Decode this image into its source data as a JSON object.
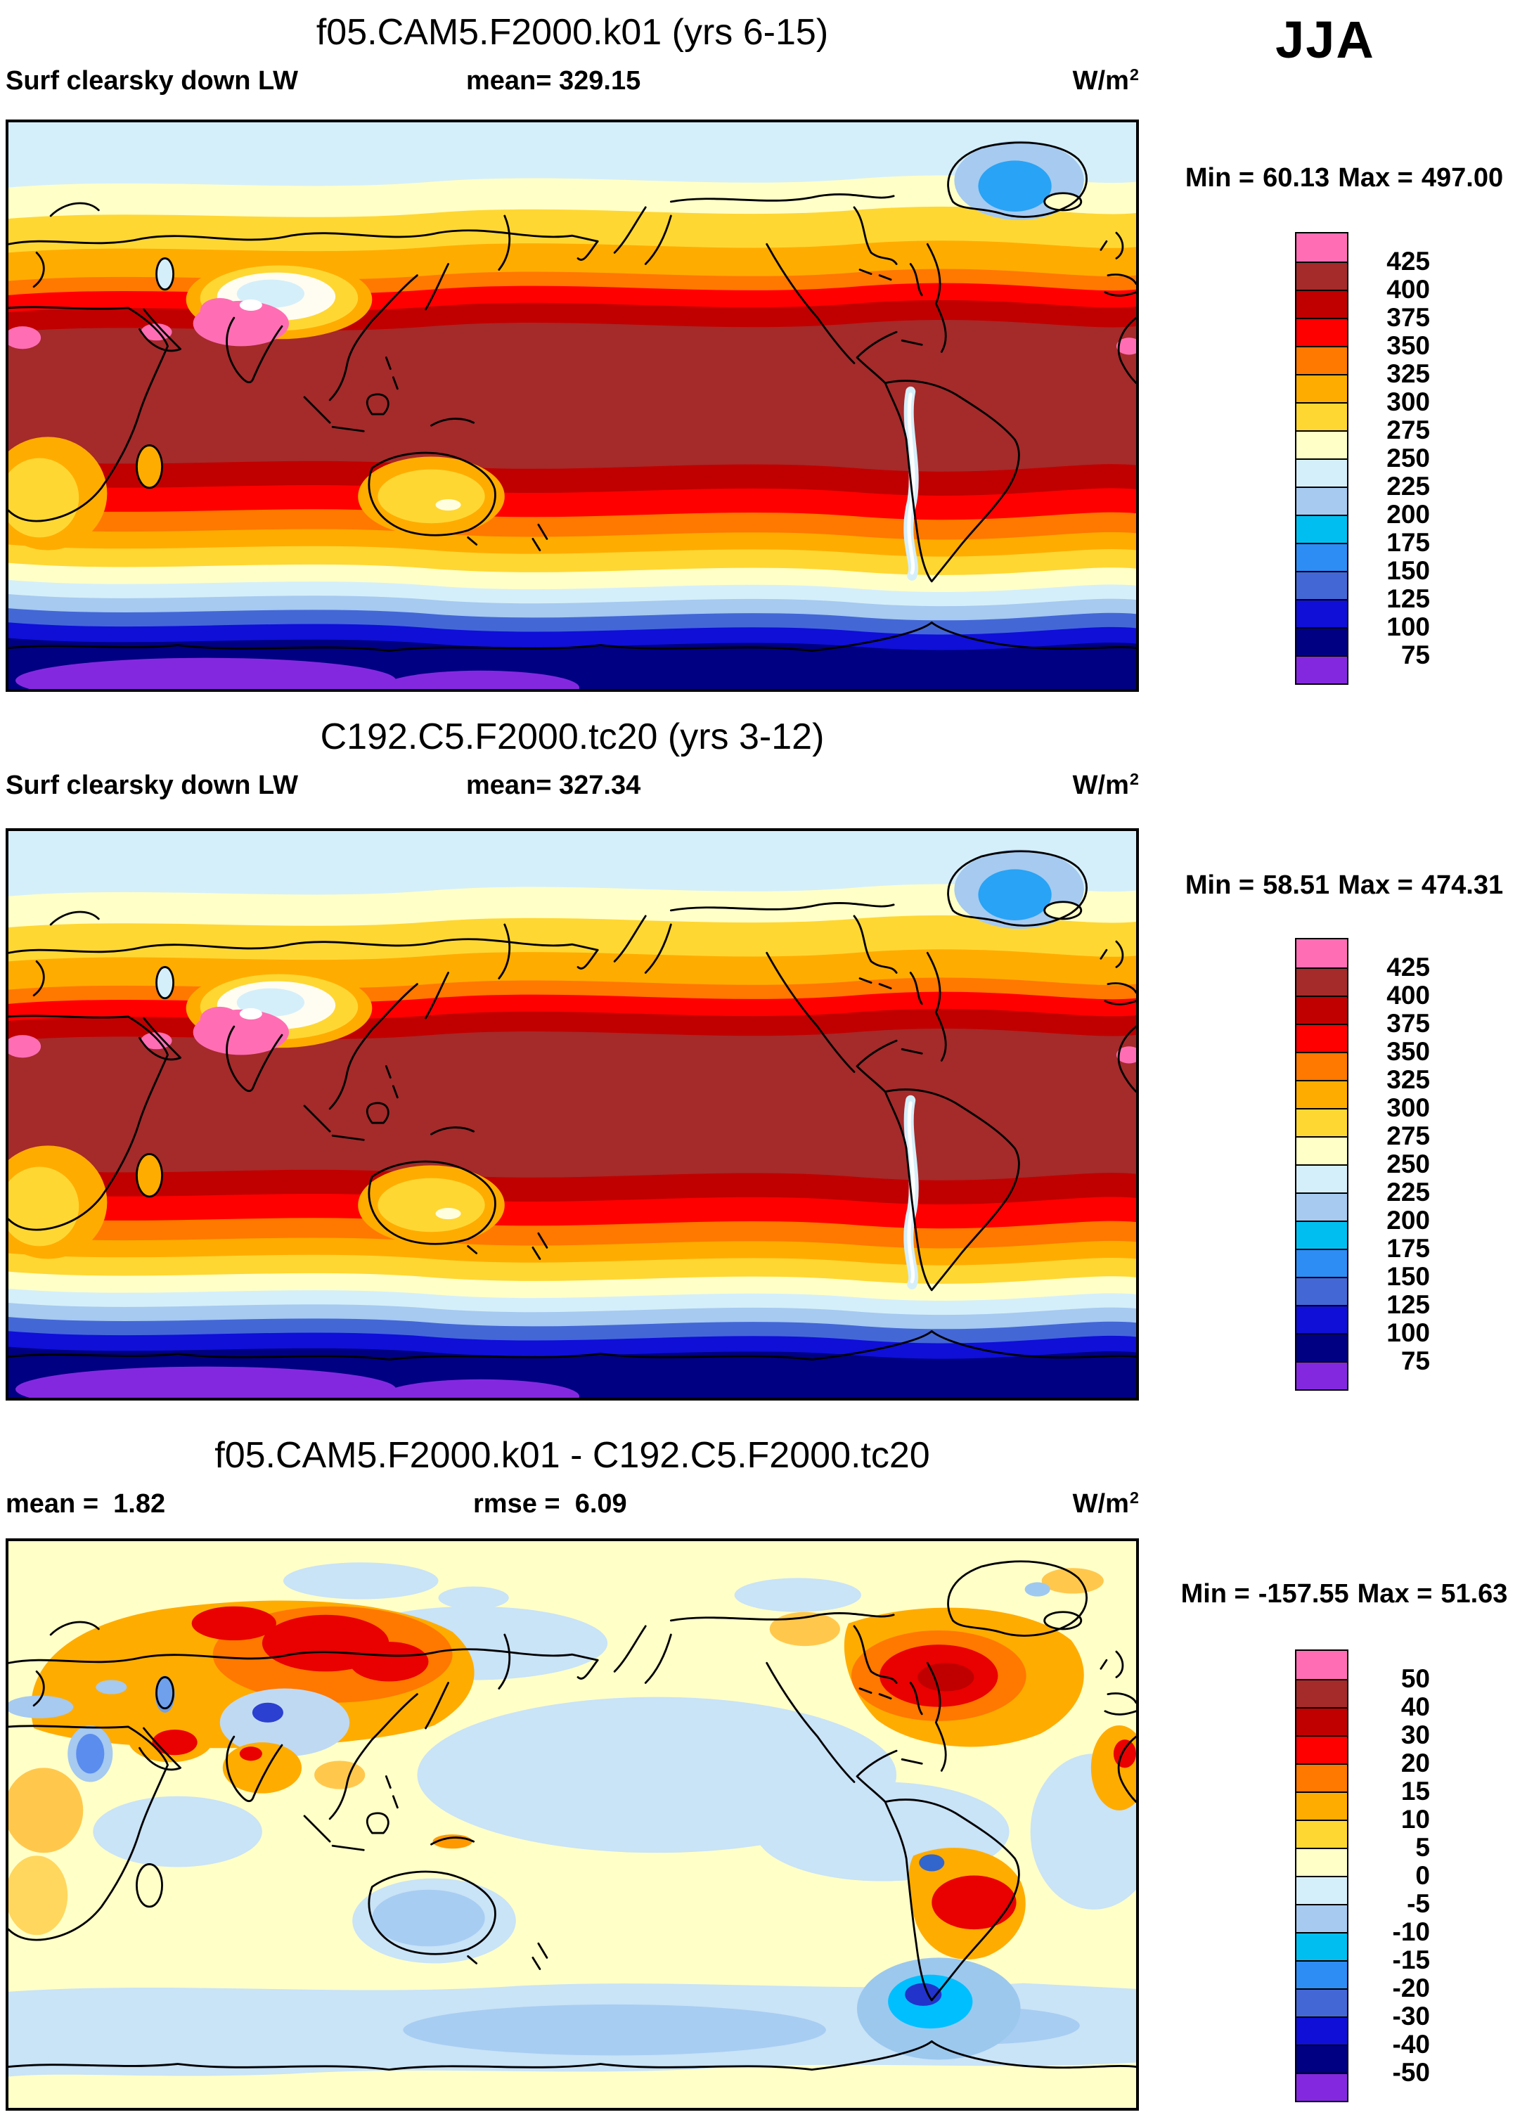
{
  "season_label": "JJA",
  "palette_top_to_bottom": [
    "#FF6EB4",
    "#A52A2A",
    "#C00000",
    "#FF0000",
    "#FF7800",
    "#FFAC00",
    "#FFD733",
    "#FFFFC8",
    "#D5EFFA",
    "#A6CAF0",
    "#00BFF0",
    "#2E8CF5",
    "#4467D6",
    "#0F0FD8",
    "#000082",
    "#8428E0"
  ],
  "panels": [
    {
      "title": "f05.CAM5.F2000.k01 (yrs 6-15)",
      "variable_label": "Surf clearsky down LW",
      "mean_label": "mean=",
      "mean_value": "329.15",
      "units_base": "W/m",
      "units_exponent": "2",
      "min_label": "Min =",
      "min_value": "60.13",
      "max_label": "Max =",
      "max_value": "497.00",
      "colorbar_labels": [
        "425",
        "400",
        "375",
        "350",
        "325",
        "300",
        "275",
        "250",
        "225",
        "200",
        "175",
        "150",
        "125",
        "100",
        "75"
      ]
    },
    {
      "title": "C192.C5.F2000.tc20 (yrs 3-12)",
      "variable_label": "Surf clearsky down LW",
      "mean_label": "mean=",
      "mean_value": "327.34",
      "units_base": "W/m",
      "units_exponent": "2",
      "min_label": "Min =",
      "min_value": "58.51",
      "max_label": "Max =",
      "max_value": "474.31",
      "colorbar_labels": [
        "425",
        "400",
        "375",
        "350",
        "325",
        "300",
        "275",
        "250",
        "225",
        "200",
        "175",
        "150",
        "125",
        "100",
        "75"
      ]
    },
    {
      "title": "f05.CAM5.F2000.k01 - C192.C5.F2000.tc20",
      "mean_label": "mean =",
      "mean_value": "1.82",
      "rmse_label": "rmse =",
      "rmse_value": "6.09",
      "units_base": "W/m",
      "units_exponent": "2",
      "min_label": "Min =",
      "min_value": "-157.55",
      "max_label": "Max =",
      "max_value": "51.63",
      "colorbar_labels": [
        "50",
        "40",
        "30",
        "20",
        "15",
        "10",
        "5",
        "0",
        "-5",
        "-10",
        "-15",
        "-20",
        "-30",
        "-40",
        "-50"
      ]
    }
  ],
  "chart_data": {
    "type": "heatmap",
    "figure_kind": "AMWG-style global lat-lon filled-contour comparison, 3 stacked map panels, Pacific-centered cylindrical projection",
    "season": "JJA",
    "variable": "Surf clearsky down LW",
    "units": "W/m2",
    "legend_position": "right",
    "panels": [
      {
        "title": "f05.CAM5.F2000.k01 (yrs 6-15)",
        "mean": 329.15,
        "min": 60.13,
        "max": 497.0,
        "contour_levels": [
          75,
          100,
          125,
          150,
          175,
          200,
          225,
          250,
          275,
          300,
          325,
          350,
          375,
          400,
          425
        ],
        "pattern": "zonal bands: dark red/brown maximum across tropics, pink >425 over Pakistan/N-India and Sahara/Arabia edges, white/light-blue minimum over Tibetan Plateau and Andes, light blue Arctic with cyan core over Greenland, blue to navy poleward bands with purple <75 over Antarctic interior"
      },
      {
        "title": "C192.C5.F2000.tc20 (yrs 3-12)",
        "mean": 327.34,
        "min": 58.51,
        "max": 474.31,
        "contour_levels": [
          75,
          100,
          125,
          150,
          175,
          200,
          225,
          250,
          275,
          300,
          325,
          350,
          375,
          400,
          425
        ],
        "pattern": "nearly identical zonal structure to panel 1"
      },
      {
        "title": "f05.CAM5.F2000.k01 - C192.C5.F2000.tc20",
        "mean": 1.82,
        "rmse": 6.09,
        "min": -157.55,
        "max": 51.63,
        "contour_levels": [
          -50,
          -40,
          -30,
          -20,
          -15,
          -10,
          -5,
          0,
          5,
          10,
          15,
          20,
          30,
          40,
          50
        ],
        "pattern": "difference map: pale yellow near zero over oceans with light blue patches; orange/red positive anomalies over Siberia, North America, Amazon, Middle East; blue negative anomalies over Tibet, Australia, and strong negative over Argentina"
      }
    ],
    "palette_top_to_bottom": [
      "#FF6EB4",
      "#A52A2A",
      "#C00000",
      "#FF0000",
      "#FF7800",
      "#FFAC00",
      "#FFD733",
      "#FFFFC8",
      "#D5EFFA",
      "#A6CAF0",
      "#00BFF0",
      "#2E8CF5",
      "#4467D6",
      "#0F0FD8",
      "#000082",
      "#8428E0"
    ]
  }
}
